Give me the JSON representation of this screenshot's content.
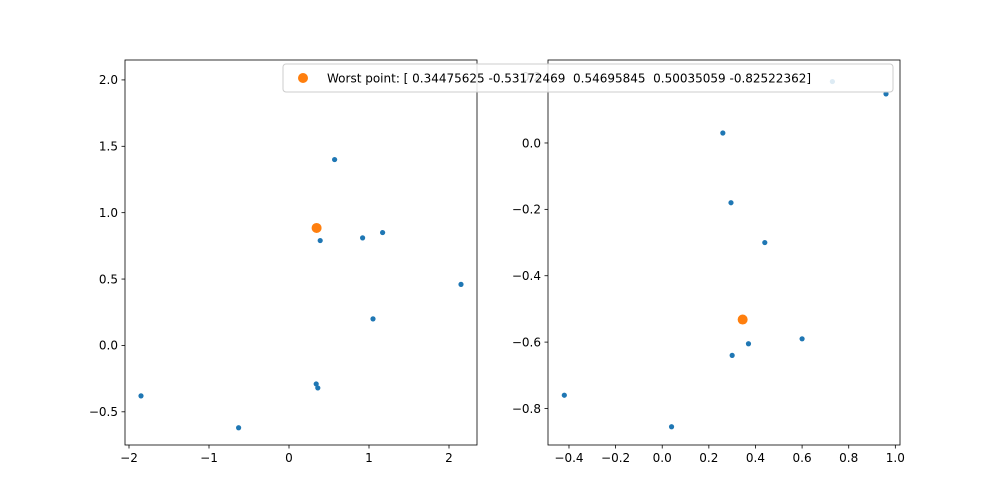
{
  "chart_data": [
    {
      "type": "scatter",
      "title": "",
      "xlabel": "",
      "ylabel": "",
      "xlim": [
        -2.05,
        2.35
      ],
      "ylim": [
        -0.75,
        2.15
      ],
      "xticks": [
        -2,
        -1,
        0,
        1,
        2
      ],
      "xtick_labels": [
        "−2",
        "−1",
        "0",
        "1",
        "2"
      ],
      "yticks": [
        -0.5,
        0.0,
        0.5,
        1.0,
        1.5,
        2.0
      ],
      "ytick_labels": [
        "−0.5",
        "0.0",
        "0.5",
        "1.0",
        "1.5",
        "2.0"
      ],
      "grid": false,
      "series": [
        {
          "color": "#1f77b4",
          "points": [
            {
              "x": -1.85,
              "y": -0.38
            },
            {
              "x": -0.63,
              "y": -0.62
            },
            {
              "x": 0.34,
              "y": -0.29
            },
            {
              "x": 0.36,
              "y": -0.32
            },
            {
              "x": 0.57,
              "y": 1.4
            },
            {
              "x": 0.39,
              "y": 0.79
            },
            {
              "x": 0.92,
              "y": 0.81
            },
            {
              "x": 1.17,
              "y": 0.85
            },
            {
              "x": 1.05,
              "y": 0.2
            },
            {
              "x": 2.15,
              "y": 0.46
            }
          ]
        },
        {
          "name": "Worst point: [ 0.34475625 -0.53172469  0.54695845  0.50035059 -0.82522362]",
          "color": "#ff7f0e",
          "points": [
            {
              "x": 0.345,
              "y": 0.885
            }
          ]
        }
      ]
    },
    {
      "type": "scatter",
      "title": "",
      "xlabel": "",
      "ylabel": "",
      "xlim": [
        -0.49,
        1.02
      ],
      "ylim": [
        -0.91,
        0.25
      ],
      "xticks": [
        -0.4,
        -0.2,
        0.0,
        0.2,
        0.4,
        0.6,
        0.8,
        1.0
      ],
      "xtick_labels": [
        "−0.4",
        "−0.2",
        "0.0",
        "0.2",
        "0.4",
        "0.6",
        "0.8",
        "1.0"
      ],
      "yticks": [
        -0.8,
        -0.6,
        -0.4,
        -0.2,
        0.0,
        0.2
      ],
      "ytick_labels": [
        "−0.8",
        "−0.6",
        "−0.4",
        "−0.2",
        "0.0",
        "0.2"
      ],
      "grid": false,
      "series": [
        {
          "color": "#1f77b4",
          "points": [
            {
              "x": -0.42,
              "y": -0.76
            },
            {
              "x": 0.04,
              "y": -0.855
            },
            {
              "x": 0.26,
              "y": 0.03
            },
            {
              "x": 0.295,
              "y": -0.18
            },
            {
              "x": 0.3,
              "y": -0.64
            },
            {
              "x": 0.37,
              "y": -0.605
            },
            {
              "x": 0.44,
              "y": -0.3
            },
            {
              "x": 0.6,
              "y": -0.59
            },
            {
              "x": 0.73,
              "y": 0.185
            },
            {
              "x": 0.96,
              "y": 0.148
            }
          ]
        },
        {
          "color": "#ff7f0e",
          "points": [
            {
              "x": 0.345,
              "y": -0.532
            }
          ]
        }
      ]
    }
  ],
  "legend": {
    "label": "Worst point: [ 0.34475625 -0.53172469  0.54695845  0.50035059 -0.82522362]",
    "marker_color": "#ff7f0e",
    "placement": "upper-right"
  }
}
